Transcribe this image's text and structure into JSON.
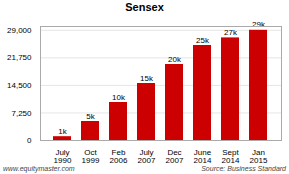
{
  "chart_data": {
    "type": "bar",
    "title": "Sensex",
    "categories": [
      "July\n1990",
      "Oct\n1999",
      "Feb\n2006",
      "July\n2007",
      "Dec\n2007",
      "June\n2014",
      "Sept\n2014",
      "Jan\n2015"
    ],
    "values": [
      1000,
      5000,
      10000,
      15000,
      20000,
      25000,
      27000,
      29000
    ],
    "value_labels": [
      "1k",
      "5k",
      "10k",
      "15k",
      "20k",
      "25k",
      "27k",
      "29k"
    ],
    "data_labels": true,
    "color": "#cc0000",
    "ylim": [
      0,
      30000
    ],
    "yticks": [
      0,
      {
        "value": 7250,
        "label": "7,250"
      },
      {
        "value": 14500,
        "label": "14,500"
      },
      {
        "value": 21750,
        "label": "21,750"
      },
      {
        "value": 29000,
        "label": "29,000"
      }
    ],
    "grid": true,
    "annotations": [
      "www.equitymaster.com",
      "Source: Business Standard"
    ]
  }
}
